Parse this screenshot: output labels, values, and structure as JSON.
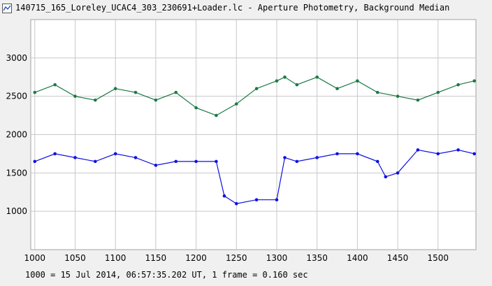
{
  "window": {
    "title": "140715_165_Loreley_UCAC4_303_230691+Loader.lc - Aperture Photometry, Background Median",
    "icon": "chart-icon"
  },
  "footer": {
    "caption": "1000 = 15 Jul 2014, 06:57:35.202 UT, 1 frame = 0.160 sec"
  },
  "colors": {
    "series_green": "#1b7a45",
    "series_blue": "#1010e0",
    "grid": "#c8c8c8",
    "plot_bg": "#ffffff"
  },
  "chart_data": {
    "type": "line",
    "title": "",
    "xlabel": "",
    "ylabel": "",
    "xlim": [
      995,
      1547
    ],
    "ylim": [
      500,
      3500
    ],
    "xticks": [
      1000,
      1050,
      1100,
      1150,
      1200,
      1250,
      1300,
      1350,
      1400,
      1450,
      1500
    ],
    "yticks": [
      1000,
      1500,
      2000,
      2500,
      3000
    ],
    "grid": true,
    "markers": true,
    "series": [
      {
        "color": "#1b7a45",
        "x": [
          1000,
          1025,
          1050,
          1075,
          1100,
          1125,
          1150,
          1175,
          1200,
          1225,
          1250,
          1275,
          1300,
          1310,
          1325,
          1350,
          1375,
          1400,
          1425,
          1450,
          1475,
          1500,
          1525,
          1545
        ],
        "values": [
          2550,
          2650,
          2500,
          2450,
          2600,
          2550,
          2450,
          2550,
          2350,
          2250,
          2400,
          2600,
          2700,
          2750,
          2650,
          2750,
          2600,
          2700,
          2550,
          2500,
          2450,
          2550,
          2650,
          2700
        ]
      },
      {
        "color": "#1010e0",
        "x": [
          1000,
          1025,
          1050,
          1075,
          1100,
          1125,
          1150,
          1175,
          1200,
          1225,
          1235,
          1250,
          1275,
          1300,
          1310,
          1325,
          1350,
          1375,
          1400,
          1425,
          1435,
          1450,
          1475,
          1500,
          1525,
          1545
        ],
        "values": [
          1650,
          1750,
          1700,
          1650,
          1750,
          1700,
          1600,
          1650,
          1650,
          1650,
          1200,
          1100,
          1150,
          1150,
          1700,
          1650,
          1700,
          1750,
          1750,
          1650,
          1450,
          1500,
          1800,
          1750,
          1800,
          1750
        ]
      }
    ]
  }
}
